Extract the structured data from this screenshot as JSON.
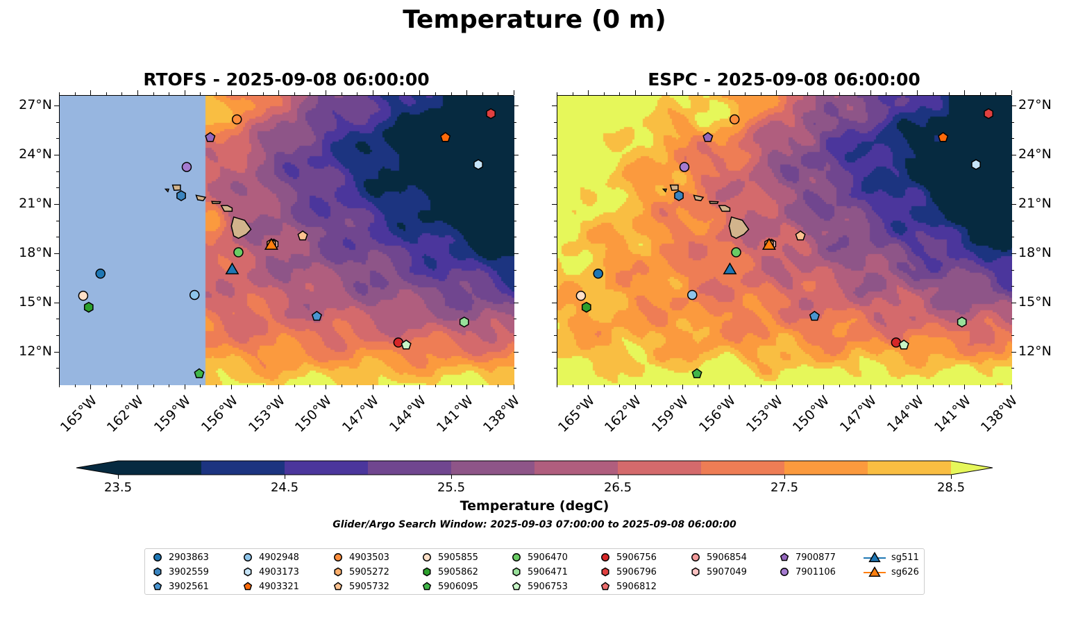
{
  "title": "Temperature (0 m)",
  "panels": [
    {
      "title": "RTOFS - 2025-09-08 06:00:00"
    },
    {
      "title": "ESPC - 2025-09-08 06:00:00"
    }
  ],
  "lon_ticks": [
    "165°W",
    "162°W",
    "159°W",
    "156°W",
    "153°W",
    "150°W",
    "147°W",
    "144°W",
    "141°W",
    "138°W"
  ],
  "lon_values": [
    -165,
    -162,
    -159,
    -156,
    -153,
    -150,
    -147,
    -144,
    -141,
    -138
  ],
  "lat_ticks": [
    "27°N",
    "24°N",
    "21°N",
    "18°N",
    "15°N",
    "12°N"
  ],
  "lat_values": [
    27,
    24,
    21,
    18,
    15,
    12
  ],
  "map_extent": {
    "lon": [
      -167,
      -138
    ],
    "lat": [
      10,
      27.64
    ]
  },
  "colorbar": {
    "label": "Temperature (degC)",
    "min": 23.5,
    "max": 28.5,
    "step": 0.5,
    "ticks": [
      "23.5",
      "24.5",
      "25.5",
      "26.5",
      "27.5",
      "28.5"
    ],
    "colors": [
      "#062a40",
      "#1c3480",
      "#4b369c",
      "#70468f",
      "#8e5588",
      "#b05e7e",
      "#d46a6c",
      "#ee7d55",
      "#fb9a3e",
      "#f9be42"
    ],
    "under": "#062a40",
    "over": "#e6f75a",
    "nodata": "#97b6e0"
  },
  "search_window": "Glider/Argo Search Window: 2025-09-03 07:00:00 to 2025-09-08 06:00:00",
  "legend": [
    {
      "id": "2903863",
      "shape": "circle",
      "color": "#1f77b4"
    },
    {
      "id": "3902559",
      "shape": "hexagon",
      "color": "#3a84bf"
    },
    {
      "id": "3902561",
      "shape": "pentagon",
      "color": "#4a95d0"
    },
    {
      "id": "4902948",
      "shape": "circle",
      "color": "#8ec5ea"
    },
    {
      "id": "4903173",
      "shape": "hexagon",
      "color": "#c6e4f8"
    },
    {
      "id": "4903321",
      "shape": "pentagon",
      "color": "#fd6a0a"
    },
    {
      "id": "4903503",
      "shape": "circle",
      "color": "#fd8d3c"
    },
    {
      "id": "5905272",
      "shape": "hexagon",
      "color": "#fdae6b"
    },
    {
      "id": "5905732",
      "shape": "pentagon",
      "color": "#fdc290"
    },
    {
      "id": "5905855",
      "shape": "circle",
      "color": "#fee0c8"
    },
    {
      "id": "5905862",
      "shape": "hexagon",
      "color": "#2ca02c"
    },
    {
      "id": "5906095",
      "shape": "pentagon",
      "color": "#41b649"
    },
    {
      "id": "5906470",
      "shape": "circle",
      "color": "#6acc64"
    },
    {
      "id": "5906471",
      "shape": "hexagon",
      "color": "#98e09a"
    },
    {
      "id": "5906753",
      "shape": "pentagon",
      "color": "#c7f5c7"
    },
    {
      "id": "5906756",
      "shape": "circle",
      "color": "#d62728"
    },
    {
      "id": "5906796",
      "shape": "hexagon",
      "color": "#e04040"
    },
    {
      "id": "5906812",
      "shape": "pentagon",
      "color": "#ec6e6e"
    },
    {
      "id": "5906854",
      "shape": "circle",
      "color": "#f29a9a"
    },
    {
      "id": "5907049",
      "shape": "hexagon",
      "color": "#fbc2c2"
    },
    {
      "id": "7900877",
      "shape": "pentagon",
      "color": "#9467bd"
    },
    {
      "id": "7901106",
      "shape": "circle",
      "color": "#a57bd0"
    },
    {
      "id": "sg511",
      "shape": "triangle",
      "color": "#1f77b4"
    },
    {
      "id": "sg626",
      "shape": "triangle",
      "color": "#ff7f0e"
    }
  ],
  "positions": [
    {
      "id": "2903863",
      "lon": -164.4,
      "lat": 16.8
    },
    {
      "id": "3902559",
      "lon": -159.25,
      "lat": 21.55
    },
    {
      "id": "5905855",
      "lon": -165.5,
      "lat": 15.45
    },
    {
      "id": "5905862",
      "lon": -165.15,
      "lat": 14.75
    },
    {
      "id": "4902948",
      "lon": -158.4,
      "lat": 15.5
    },
    {
      "id": "5906095",
      "lon": -158.1,
      "lat": 10.7
    },
    {
      "id": "7901106",
      "lon": -158.9,
      "lat": 23.3
    },
    {
      "id": "7900877",
      "lon": -157.4,
      "lat": 25.1
    },
    {
      "id": "4903503",
      "lon": -155.7,
      "lat": 26.2
    },
    {
      "id": "5906470",
      "lon": -155.6,
      "lat": 18.1
    },
    {
      "id": "5907049",
      "lon": -153.35,
      "lat": 18.6
    },
    {
      "id": "5905272",
      "lon": -153.5,
      "lat": 18.6
    },
    {
      "id": "5905732",
      "lon": -151.5,
      "lat": 19.1
    },
    {
      "id": "3902561",
      "lon": -150.6,
      "lat": 14.2
    },
    {
      "id": "4903321",
      "lon": -142.4,
      "lat": 25.1
    },
    {
      "id": "5906796",
      "lon": -139.5,
      "lat": 26.55
    },
    {
      "id": "4903173",
      "lon": -140.3,
      "lat": 23.45
    },
    {
      "id": "5906471",
      "lon": -141.2,
      "lat": 13.85
    },
    {
      "id": "5906756",
      "lon": -145.4,
      "lat": 12.6
    },
    {
      "id": "5906753",
      "lon": -144.9,
      "lat": 12.45
    },
    {
      "id": "sg511",
      "lon": -156.0,
      "lat": 17.0
    },
    {
      "id": "sg626",
      "lon": -153.5,
      "lat": 18.5
    }
  ]
}
